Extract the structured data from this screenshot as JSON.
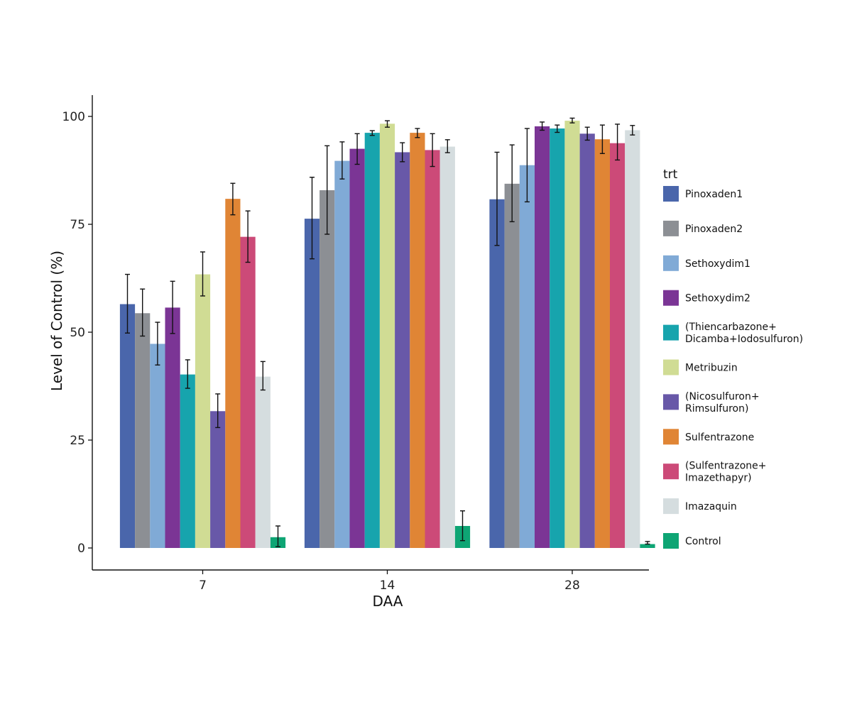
{
  "chart_data": {
    "type": "bar",
    "title": "",
    "xlabel": "DAA",
    "ylabel": "Level of Control (%)",
    "categories": [
      "7",
      "14",
      "28"
    ],
    "ylim": [
      0,
      100
    ],
    "yticks": [
      0,
      25,
      50,
      75,
      100
    ],
    "error_bars": true,
    "grid": false,
    "legend": {
      "title": "trt",
      "position": "right"
    },
    "series": [
      {
        "name": "Pinoxaden1",
        "color": "#4a66ab",
        "values": [
          56.5,
          76.3,
          80.8
        ],
        "err_low": [
          49.8,
          67.0,
          70.1
        ],
        "err_high": [
          63.4,
          85.9,
          91.7
        ]
      },
      {
        "name": "Pinoxaden2",
        "color": "#8c8f94",
        "values": [
          54.4,
          82.9,
          84.4
        ],
        "err_low": [
          49.1,
          72.7,
          75.6
        ],
        "err_high": [
          60.0,
          93.2,
          93.4
        ]
      },
      {
        "name": "Sethoxydim1",
        "color": "#80aad6",
        "values": [
          47.3,
          89.7,
          88.7
        ],
        "err_low": [
          42.4,
          85.5,
          80.2
        ],
        "err_high": [
          52.3,
          94.1,
          97.2
        ]
      },
      {
        "name": "Sethoxydim2",
        "color": "#7b3595",
        "values": [
          55.7,
          92.5,
          97.7
        ],
        "err_low": [
          49.7,
          88.9,
          96.8
        ],
        "err_high": [
          61.8,
          96.0,
          98.7
        ]
      },
      {
        "name": "(Thiencarbazone+\nDicamba+Iodosulfuron)",
        "color": "#17a4ad",
        "values": [
          40.2,
          96.2,
          97.2
        ],
        "err_low": [
          37.0,
          95.6,
          96.3
        ],
        "err_high": [
          43.6,
          96.7,
          98.0
        ]
      },
      {
        "name": "Metribuzin",
        "color": "#d0dc94",
        "values": [
          63.4,
          98.3,
          99.0
        ],
        "err_low": [
          58.4,
          97.5,
          98.5
        ],
        "err_high": [
          68.6,
          99.0,
          99.6
        ]
      },
      {
        "name": "(Nicosulfuron+\nRimsulfuron)",
        "color": "#6858a8",
        "values": [
          31.7,
          91.7,
          96.0
        ],
        "err_low": [
          27.9,
          89.5,
          94.5
        ],
        "err_high": [
          35.7,
          93.9,
          97.5
        ]
      },
      {
        "name": "Sulfentrazone",
        "color": "#e08535",
        "values": [
          80.9,
          96.2,
          94.7
        ],
        "err_low": [
          77.2,
          95.1,
          91.4
        ],
        "err_high": [
          84.5,
          97.2,
          98.0
        ]
      },
      {
        "name": "(Sulfentrazone+\nImazethapyr)",
        "color": "#cc4a78",
        "values": [
          72.1,
          92.2,
          93.8
        ],
        "err_low": [
          66.2,
          88.4,
          89.9
        ],
        "err_high": [
          78.1,
          96.0,
          98.2
        ]
      },
      {
        "name": "Imazaquin",
        "color": "#d5dddf",
        "values": [
          39.7,
          93.0,
          96.8
        ],
        "err_low": [
          36.6,
          91.6,
          95.7
        ],
        "err_high": [
          43.2,
          94.6,
          97.9
        ]
      },
      {
        "name": "Control",
        "color": "#0ea574",
        "values": [
          2.5,
          5.1,
          0.9
        ],
        "err_low": [
          0.3,
          1.7,
          0.9
        ],
        "err_high": [
          5.1,
          8.6,
          1.5
        ]
      }
    ]
  }
}
